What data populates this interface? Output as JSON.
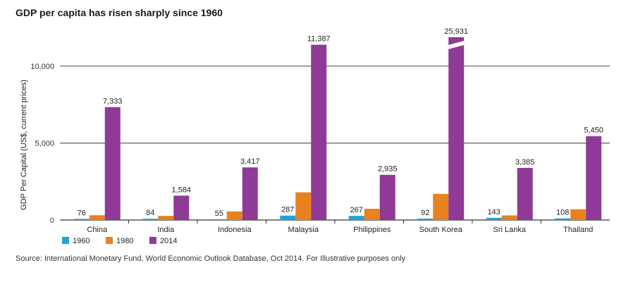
{
  "chart_data": {
    "type": "bar",
    "title": "GDP per capita has risen sharply since 1960",
    "ylabel": "GDP Per Capital (US$, current prices)",
    "xlabel": "",
    "ylim": [
      0,
      12500
    ],
    "yticks": [
      0,
      5000,
      10000
    ],
    "ytick_labels": [
      "0",
      "5,000",
      "10,000"
    ],
    "grid": true,
    "legend_position": "bottom-left",
    "categories": [
      "China",
      "India",
      "Indonesia",
      "Malaysia",
      "Philippines",
      "South Korea",
      "Sri Lanka",
      "Thailand"
    ],
    "series": [
      {
        "name": "1960",
        "color": "#1fa3dc",
        "values": [
          76,
          84,
          55,
          287,
          267,
          92,
          143,
          108
        ],
        "labels": [
          "76",
          "84",
          "55",
          "287",
          "267",
          "92",
          "143",
          "108"
        ]
      },
      {
        "name": "1980",
        "color": "#e8821e",
        "values": [
          310,
          270,
          560,
          1800,
          730,
          1700,
          300,
          700
        ],
        "labels": [
          "",
          "",
          "",
          "",
          "",
          "",
          "",
          ""
        ]
      },
      {
        "name": "2014",
        "color": "#8e3a96",
        "values": [
          7333,
          1584,
          3417,
          11387,
          2935,
          25931,
          3385,
          5450
        ],
        "labels": [
          "7,333",
          "1,584",
          "3,417",
          "11,387",
          "2,935",
          "25,931",
          "3,385",
          "5,450"
        ]
      }
    ],
    "axis_break": {
      "category": "South Korea",
      "series": "2014"
    },
    "source": "Source: International Monetary Fund, World Economic Outlook Database, Oct 2014. For Illustrative purposes only"
  }
}
